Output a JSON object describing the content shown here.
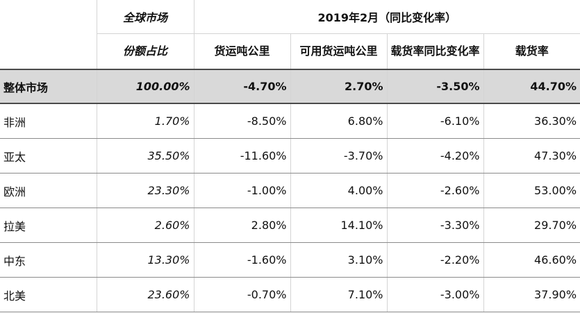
{
  "header": {
    "share_top": "全球市场",
    "share_bottom": "份额占比",
    "period": "2019年2月（同比变化率）",
    "columns": [
      "货运吨公里",
      "可用货运吨公里",
      "载货率同比变化率",
      "载货率"
    ]
  },
  "total": {
    "region": "整体市场",
    "share": "100.00%",
    "ftk": "-4.70%",
    "aftk": "2.70%",
    "lf_change": "-3.50%",
    "lf": "44.70%"
  },
  "rows": [
    {
      "region": "非洲",
      "share": "1.70%",
      "ftk": "-8.50%",
      "aftk": "6.80%",
      "lf_change": "-6.10%",
      "lf": "36.30%"
    },
    {
      "region": "亚太",
      "share": "35.50%",
      "ftk": "-11.60%",
      "aftk": "-3.70%",
      "lf_change": "-4.20%",
      "lf": "47.30%"
    },
    {
      "region": "欧洲",
      "share": "23.30%",
      "ftk": "-1.00%",
      "aftk": "4.00%",
      "lf_change": "-2.60%",
      "lf": "53.00%"
    },
    {
      "region": "拉美",
      "share": "2.60%",
      "ftk": "2.80%",
      "aftk": "14.10%",
      "lf_change": "-3.30%",
      "lf": "29.70%"
    },
    {
      "region": "中东",
      "share": "13.30%",
      "ftk": "-1.60%",
      "aftk": "3.10%",
      "lf_change": "-2.20%",
      "lf": "46.60%"
    },
    {
      "region": "北美",
      "share": "23.60%",
      "ftk": "-0.70%",
      "aftk": "7.10%",
      "lf_change": "-3.00%",
      "lf": "37.90%"
    }
  ]
}
